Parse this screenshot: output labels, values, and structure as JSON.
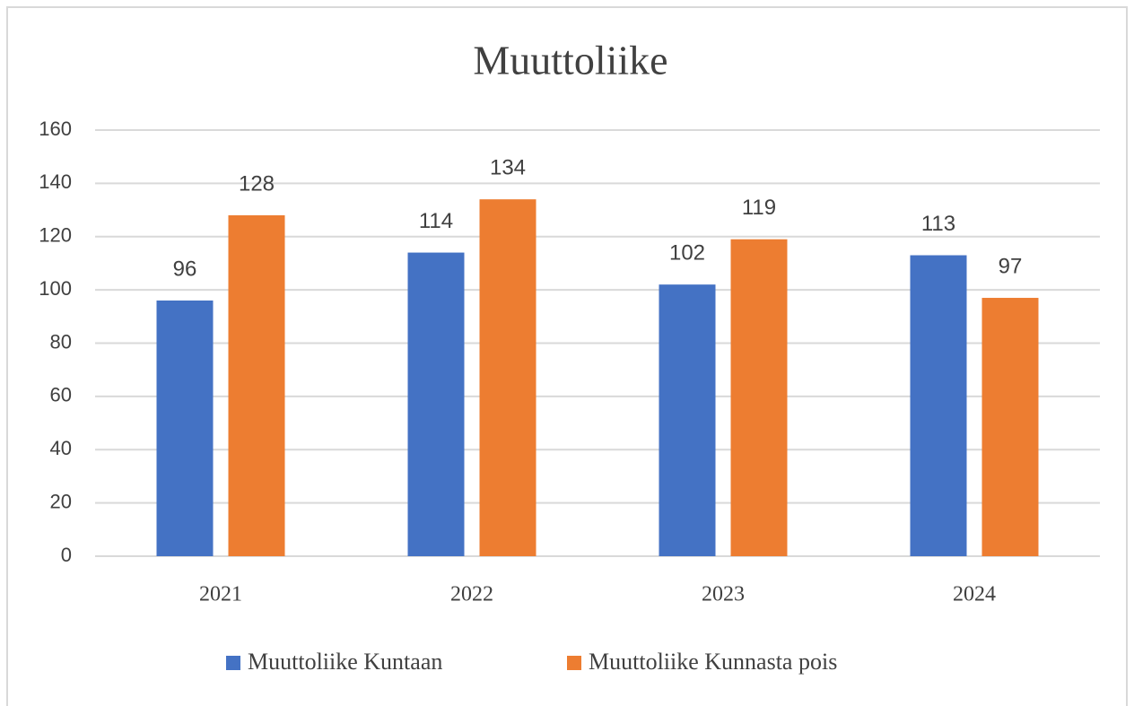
{
  "chart_data": {
    "type": "bar",
    "title": "Muuttoliike",
    "categories": [
      "2021",
      "2022",
      "2023",
      "2024"
    ],
    "series": [
      {
        "name": "Muuttoliike Kuntaan",
        "color": "#4472c4",
        "values": [
          96,
          114,
          102,
          113
        ]
      },
      {
        "name": "Muuttoliike Kunnasta pois",
        "color": "#ed7d31",
        "values": [
          128,
          134,
          119,
          97
        ]
      }
    ],
    "ylim": [
      0,
      160
    ],
    "yticks": [
      0,
      20,
      40,
      60,
      80,
      100,
      120,
      140,
      160
    ],
    "grid": true,
    "legend": "bottom"
  }
}
